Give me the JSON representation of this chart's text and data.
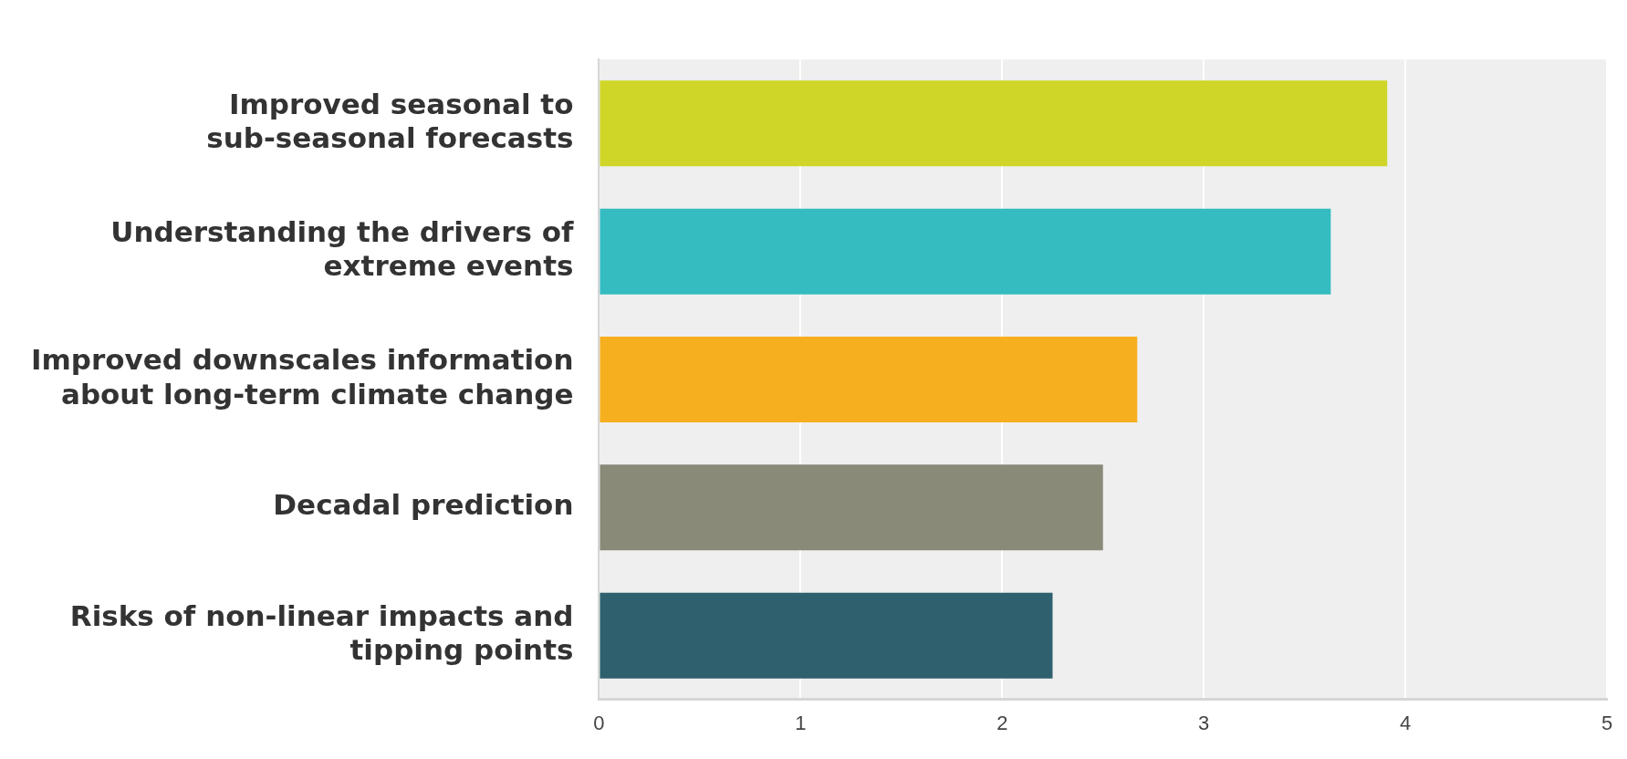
{
  "chart_data": {
    "type": "bar",
    "orientation": "horizontal",
    "categories": [
      "Improved seasonal to sub-seasonal forecasts",
      "Understanding the drivers of extreme events",
      "Improved downscales information about long-term climate change",
      "Decadal prediction",
      "Risks of non-linear impacts and tipping points"
    ],
    "values": [
      3.91,
      3.63,
      2.67,
      2.5,
      2.25
    ],
    "colors": [
      "#cfd628",
      "#34bcc0",
      "#f6af1f",
      "#8a8a79",
      "#2e606d"
    ],
    "xlim": [
      0,
      5
    ],
    "xticks": [
      0,
      1,
      2,
      3,
      4,
      5
    ],
    "grid": "x"
  }
}
